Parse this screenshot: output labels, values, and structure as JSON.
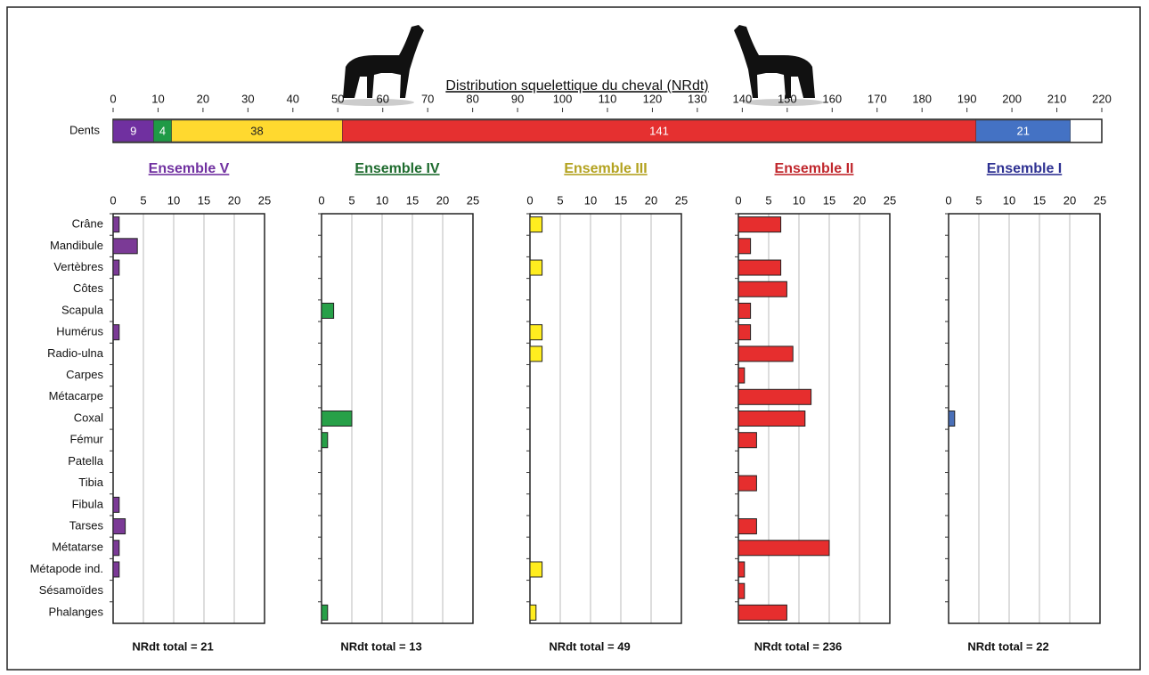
{
  "chart_data": [
    {
      "type": "stacked-bar",
      "title": "Distribution squelettique du cheval (NRdt)",
      "label": "Dents",
      "values": [
        9,
        4,
        38,
        141,
        21
      ],
      "colors": [
        "#7030a0",
        "#1f9a46",
        "#ffd92f",
        "#e53030",
        "#4472c4"
      ],
      "xlim": [
        0,
        220
      ],
      "xticks": [
        0,
        10,
        20,
        30,
        40,
        50,
        60,
        70,
        80,
        90,
        100,
        110,
        120,
        130,
        140,
        150,
        160,
        170,
        180,
        190,
        200,
        210,
        220
      ]
    },
    {
      "type": "bar",
      "title": "Ensemble V",
      "title_color": "#7030a0",
      "color": "#7b3a96",
      "categories": [
        "Crâne",
        "Mandibule",
        "Vertèbres",
        "Côtes",
        "Scapula",
        "Humérus",
        "Radio-ulna",
        "Carpes",
        "Métacarpe",
        "Coxal",
        "Fémur",
        "Patella",
        "Tibia",
        "Fibula",
        "Tarses",
        "Métatarse",
        "Métapode ind.",
        "Sésamoïdes",
        "Phalanges"
      ],
      "values": [
        1,
        4,
        1,
        0,
        0,
        1,
        0,
        0,
        0,
        0,
        0,
        0,
        0,
        1,
        2,
        1,
        1,
        0,
        0
      ],
      "xlim": [
        0,
        25
      ],
      "xticks": [
        0,
        5,
        10,
        15,
        20,
        25
      ],
      "grid": true,
      "footer": "NRdt total = 21"
    },
    {
      "type": "bar",
      "title": "Ensemble IV",
      "title_color": "#1e6b2e",
      "color": "#27a048",
      "values": [
        0,
        0,
        0,
        0,
        2,
        0,
        0,
        0,
        0,
        5,
        1,
        0,
        0,
        0,
        0,
        0,
        0,
        0,
        1
      ],
      "xlim": [
        0,
        25
      ],
      "xticks": [
        0,
        5,
        10,
        15,
        20,
        25
      ],
      "grid": true,
      "footer": "NRdt total = 13"
    },
    {
      "type": "bar",
      "title": "Ensemble III",
      "title_color": "#b3a21f",
      "color": "#ffed1f",
      "values": [
        2,
        0,
        2,
        0,
        0,
        2,
        2,
        0,
        0,
        0,
        0,
        0,
        0,
        0,
        0,
        0,
        2,
        0,
        1
      ],
      "xlim": [
        0,
        25
      ],
      "xticks": [
        0,
        5,
        10,
        15,
        20,
        25
      ],
      "grid": true,
      "footer": "NRdt total = 49"
    },
    {
      "type": "bar",
      "title": "Ensemble II",
      "title_color": "#c0272d",
      "color": "#e62e2e",
      "values": [
        7,
        2,
        7,
        8,
        2,
        2,
        9,
        1,
        12,
        11,
        3,
        0,
        3,
        0,
        3,
        15,
        1,
        1,
        8
      ],
      "xlim": [
        0,
        25
      ],
      "xticks": [
        0,
        5,
        10,
        15,
        20,
        25
      ],
      "grid": true,
      "footer": "NRdt total = 236"
    },
    {
      "type": "bar",
      "title": "Ensemble I",
      "title_color": "#2e3192",
      "color": "#4a70b8",
      "values": [
        0,
        0,
        0,
        0,
        0,
        0,
        0,
        0,
        0,
        1,
        0,
        0,
        0,
        0,
        0,
        0,
        0,
        0,
        0
      ],
      "xlim": [
        0,
        25
      ],
      "xticks": [
        0,
        5,
        10,
        15,
        20,
        25
      ],
      "grid": true,
      "footer": "NRdt total = 22"
    }
  ]
}
